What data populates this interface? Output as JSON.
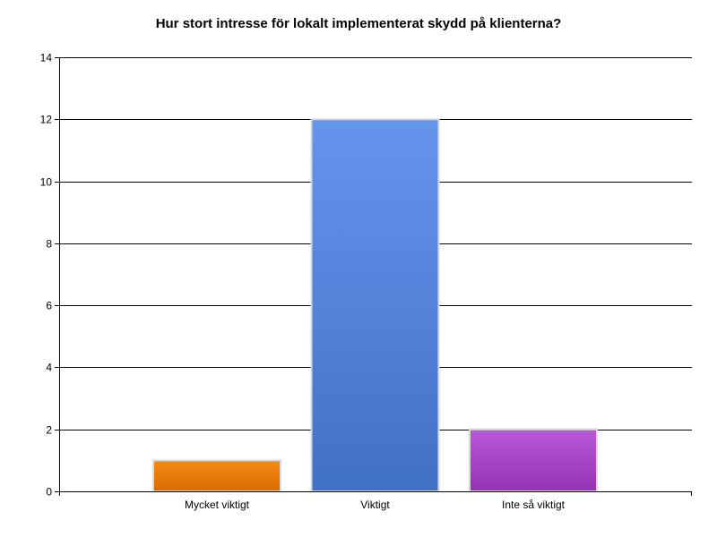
{
  "chart_data": {
    "type": "bar",
    "title": "Hur stort intresse för lokalt implementerat skydd på klienterna?",
    "xlabel": "",
    "ylabel": "",
    "categories": [
      "Mycket viktigt",
      "Viktigt",
      "Inte så viktigt"
    ],
    "values": [
      1,
      12,
      2
    ],
    "ylim": [
      0,
      14
    ],
    "yticks": [
      0,
      2,
      4,
      6,
      8,
      10,
      12,
      14
    ],
    "grid": true,
    "legend": "none",
    "bar_colors": [
      {
        "top": "#f58a14",
        "bottom": "#d86a00"
      },
      {
        "top": "#6495ed",
        "bottom": "#3f72c6"
      },
      {
        "top": "#b85ad8",
        "bottom": "#9433b1"
      }
    ],
    "bar_border": "#d9d9d9",
    "axis_color": "#000000"
  }
}
